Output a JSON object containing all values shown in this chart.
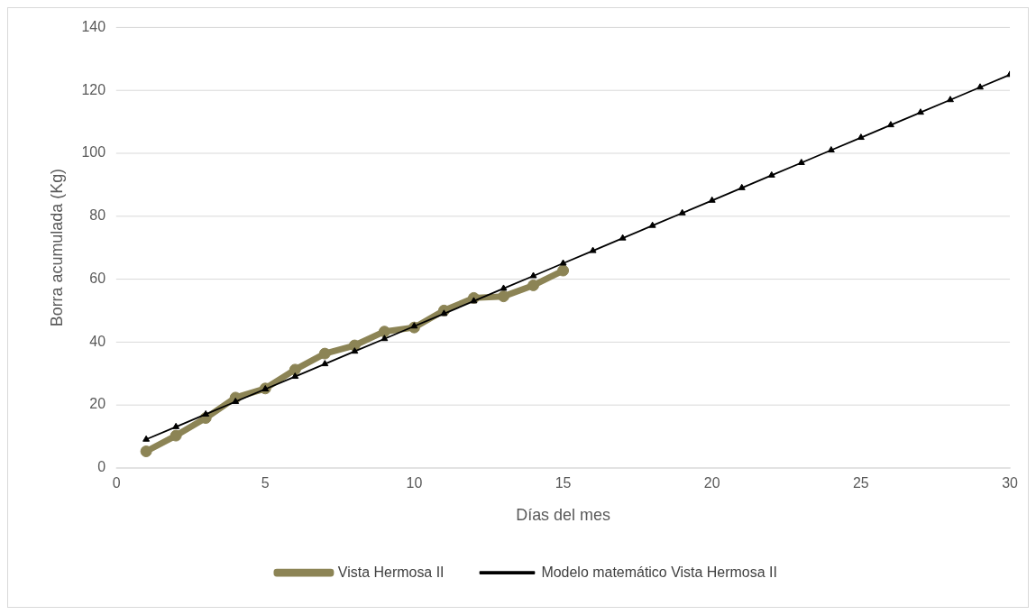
{
  "chart_data": {
    "type": "scatter",
    "xlabel": "Días del mes",
    "ylabel": "Borra acumulada (Kg)",
    "xlim": [
      0,
      30
    ],
    "xticks": [
      0,
      5,
      10,
      15,
      20,
      25,
      30
    ],
    "ylim": [
      0,
      140
    ],
    "yticks": [
      0,
      20,
      40,
      60,
      80,
      100,
      120,
      140
    ],
    "grid": "y",
    "legend": "bottom",
    "series": [
      {
        "name": "Vista Hermosa II",
        "type": "line",
        "color": "#8c8455",
        "marker": "circle",
        "x": [
          1,
          2,
          3,
          4,
          5,
          6,
          7,
          8,
          9,
          10,
          11,
          12,
          13,
          14,
          15
        ],
        "values": [
          5.2,
          10.2,
          15.8,
          22.3,
          25.2,
          31.2,
          36.3,
          38.9,
          43.3,
          44.6,
          50,
          54,
          54.5,
          58,
          62.7
        ]
      },
      {
        "name": "Modelo matemático Vista Hermosa II",
        "type": "line",
        "color": "#000000",
        "marker": "triangle",
        "x": [
          1,
          2,
          3,
          4,
          5,
          6,
          7,
          8,
          9,
          10,
          11,
          12,
          13,
          14,
          15,
          16,
          17,
          18,
          19,
          20,
          21,
          22,
          23,
          24,
          25,
          26,
          27,
          28,
          29,
          30
        ],
        "values": [
          9,
          13,
          17,
          21,
          25,
          29,
          33,
          37,
          41,
          45,
          49,
          53,
          57,
          61,
          65,
          69,
          73,
          77,
          81,
          85,
          89,
          93,
          97,
          101,
          105,
          109,
          113,
          117,
          121,
          125
        ]
      }
    ]
  }
}
